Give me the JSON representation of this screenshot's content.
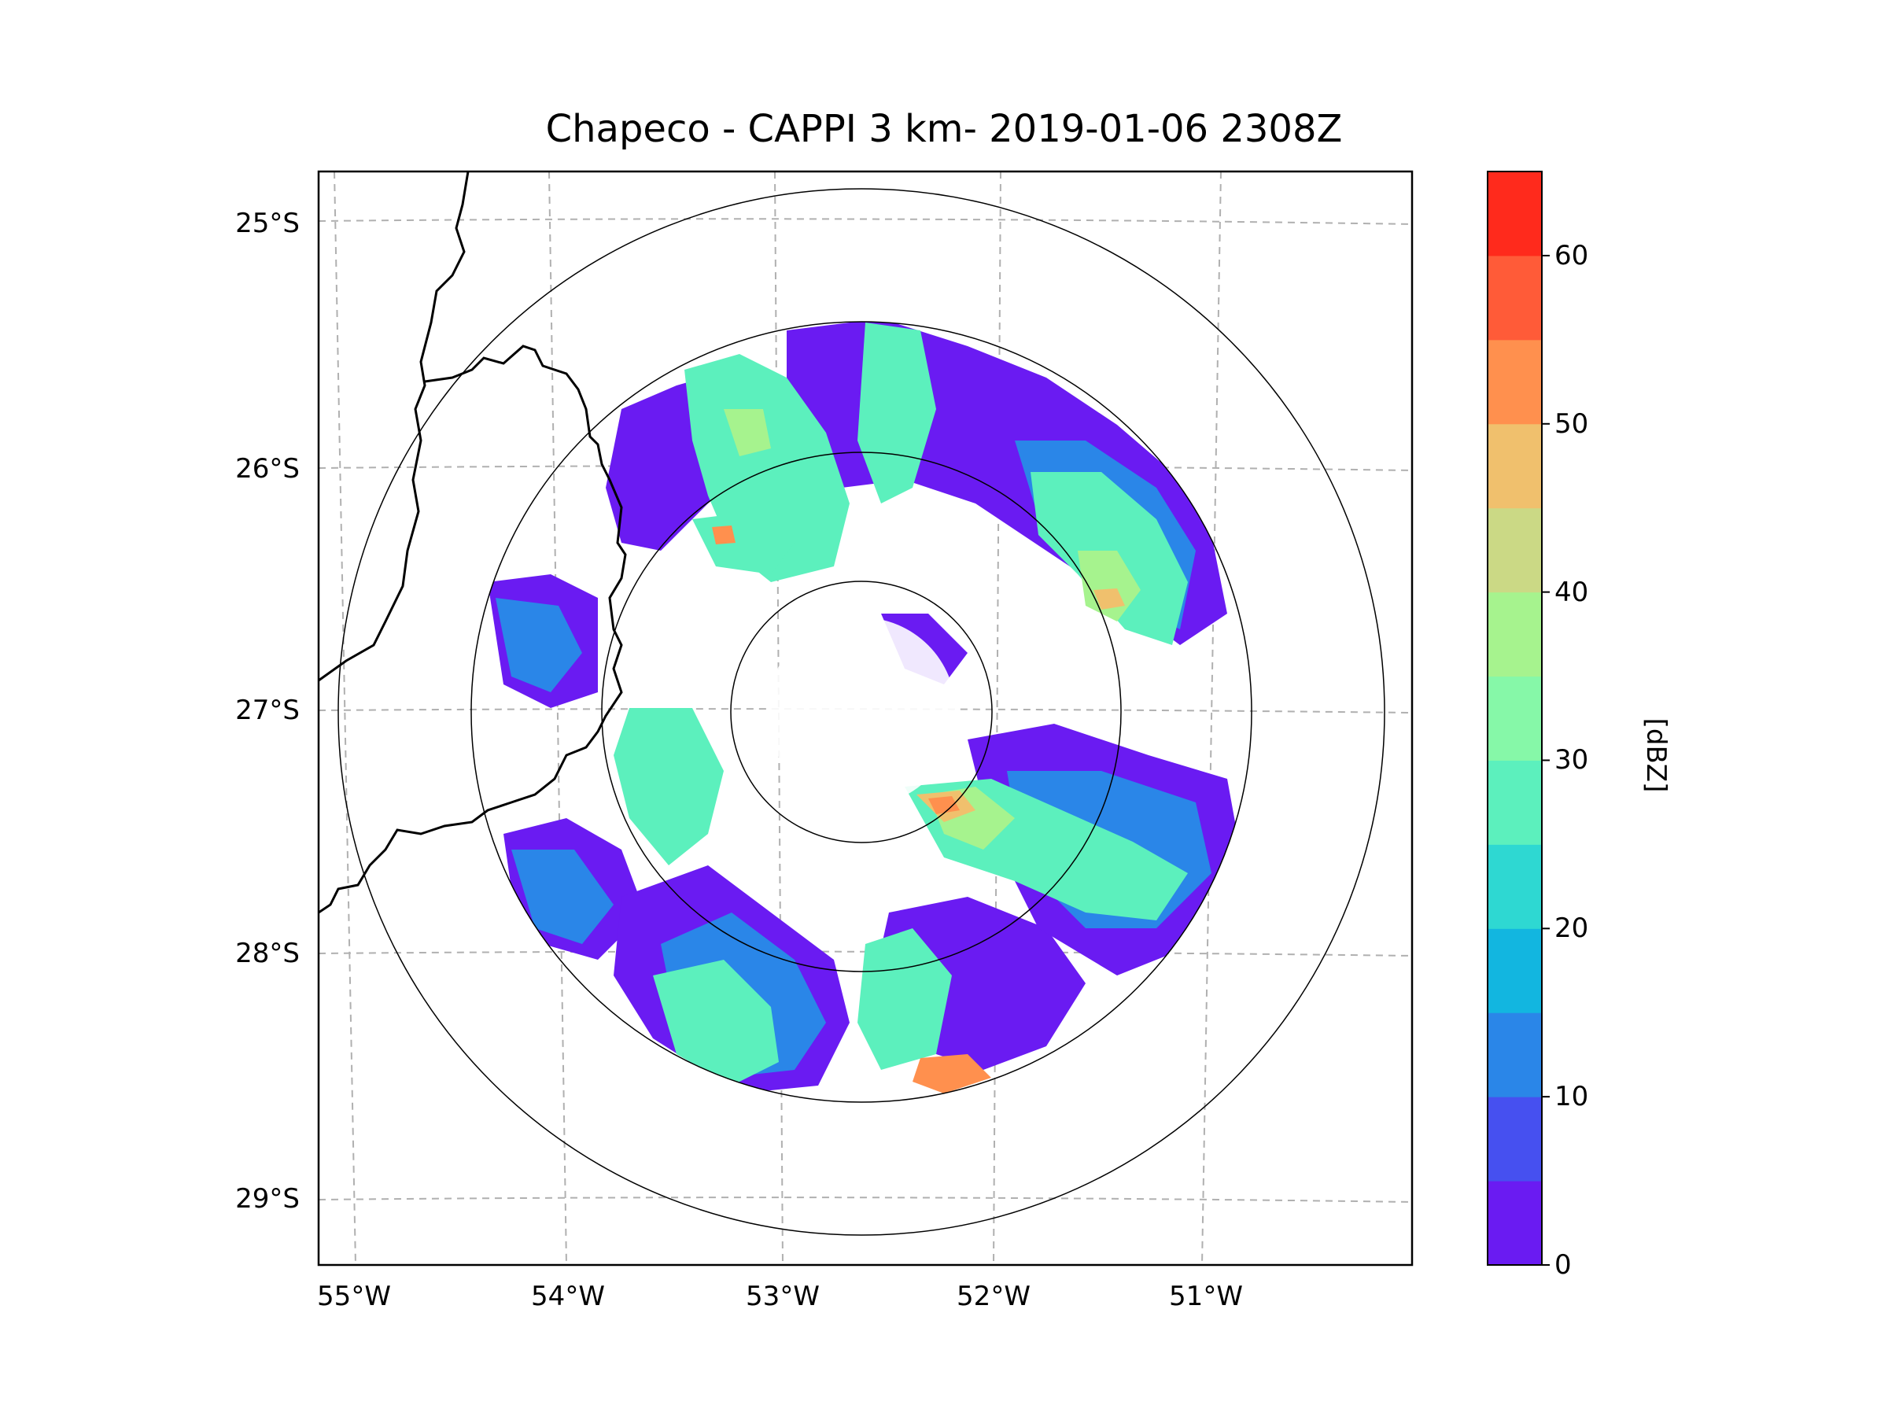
{
  "title": "Chapeco - CAPPI 3 km- 2019-01-06 2308Z",
  "map": {
    "lat_labels": [
      "25°S",
      "26°S",
      "27°S",
      "28°S",
      "29°S"
    ],
    "lon_labels": [
      "55°W",
      "54°W",
      "53°W",
      "52°W",
      "51°W"
    ],
    "radar_center": {
      "lon": -52.6,
      "lat": -27.0
    },
    "range_rings_km": [
      50,
      100,
      150,
      200
    ],
    "data_max_range_km": 150
  },
  "colorbar": {
    "label": "[dBZ]",
    "tick_labels": [
      "0",
      "10",
      "20",
      "30",
      "40",
      "50",
      "60"
    ],
    "min": 0,
    "max": 65,
    "step": 5,
    "colors": [
      "#6a1bf2",
      "#4650f0",
      "#2a86e8",
      "#12b6e0",
      "#2ed8d2",
      "#5cf0bd",
      "#86f8a8",
      "#a6f38e",
      "#cbd985",
      "#f0c06d",
      "#ff904e",
      "#ff5b38",
      "#ff2a1c"
    ]
  },
  "line_color": "#000000",
  "grid_color": "#b0b0b0"
}
